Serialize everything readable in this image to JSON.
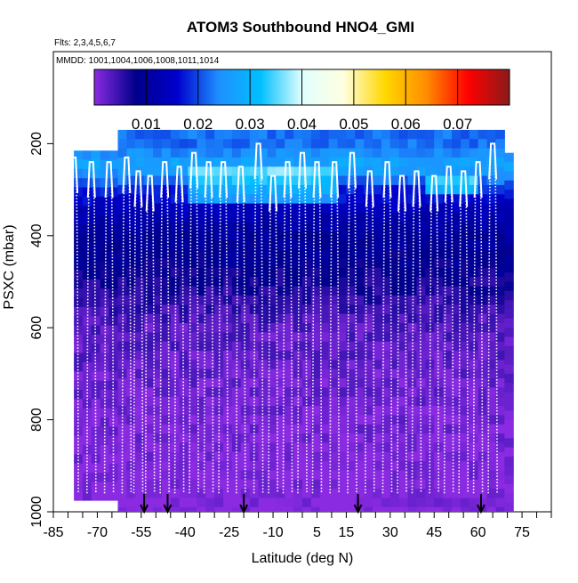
{
  "chart_data": {
    "type": "heatmap",
    "title": "ATOM3 Southbound HNO4_GMI",
    "flights_note": "Flts: 2,3,4,5,6,7",
    "dates_note": "MMDD: 1001,1004,1006,1008,1011,1014",
    "xlabel": "Latitude (deg N)",
    "ylabel": "PSXC (mbar)",
    "xlim": [
      -85,
      85
    ],
    "ylim": [
      1000,
      0
    ],
    "x_ticks": [
      -85,
      -70,
      -55,
      -40,
      -25,
      -10,
      5,
      15,
      30,
      45,
      60,
      75
    ],
    "x_tick_labels": [
      "-85",
      "-70",
      "-55",
      "-40",
      "-25",
      "-10",
      "5",
      "15",
      "30",
      "45",
      "60",
      "75"
    ],
    "y_ticks": [
      200,
      400,
      600,
      800,
      1000
    ],
    "y_tick_labels": [
      "200",
      "400",
      "600",
      "800",
      "1000"
    ],
    "colorbar": {
      "min": 0.0,
      "max": 0.08,
      "ticks": [
        0.01,
        0.02,
        0.03,
        0.04,
        0.05,
        0.06,
        0.07
      ],
      "tick_labels": [
        "0.01",
        "0.02",
        "0.03",
        "0.04",
        "0.05",
        "0.06",
        "0.07"
      ],
      "colors": [
        "#8a2be2",
        "#00008b",
        "#0000cd",
        "#1e90ff",
        "#00bfff",
        "#e0ffff",
        "#ffffe0",
        "#ffd700",
        "#ff8c00",
        "#ff0000",
        "#8b1a1a"
      ]
    },
    "arrow_latitudes": [
      -54,
      -46,
      -20,
      19,
      61
    ],
    "field_extent": {
      "lat_min": -78,
      "lat_max": 72,
      "p_top": 170,
      "p_bottom": 1000
    },
    "concentration_profile": [
      {
        "p": 200,
        "v": 0.022
      },
      {
        "p": 250,
        "v": 0.028
      },
      {
        "p": 300,
        "v": 0.018
      },
      {
        "p": 350,
        "v": 0.013
      },
      {
        "p": 400,
        "v": 0.01
      },
      {
        "p": 450,
        "v": 0.009
      },
      {
        "p": 500,
        "v": 0.007
      },
      {
        "p": 550,
        "v": 0.005
      },
      {
        "p": 600,
        "v": 0.003
      },
      {
        "p": 700,
        "v": 0.002
      },
      {
        "p": 800,
        "v": 0.001
      },
      {
        "p": 1000,
        "v": 0.0
      }
    ],
    "profiles": [
      {
        "lat": -78,
        "p_top": 230
      },
      {
        "lat": -72,
        "p_top": 240
      },
      {
        "lat": -66,
        "p_top": 240
      },
      {
        "lat": -60,
        "p_top": 230
      },
      {
        "lat": -56,
        "p_top": 260
      },
      {
        "lat": -52,
        "p_top": 270
      },
      {
        "lat": -47,
        "p_top": 240
      },
      {
        "lat": -42,
        "p_top": 250
      },
      {
        "lat": -37,
        "p_top": 220
      },
      {
        "lat": -32,
        "p_top": 240
      },
      {
        "lat": -27,
        "p_top": 240
      },
      {
        "lat": -21,
        "p_top": 250
      },
      {
        "lat": -15,
        "p_top": 200
      },
      {
        "lat": -10,
        "p_top": 270
      },
      {
        "lat": -5,
        "p_top": 240
      },
      {
        "lat": 0,
        "p_top": 220
      },
      {
        "lat": 5,
        "p_top": 240
      },
      {
        "lat": 11,
        "p_top": 240
      },
      {
        "lat": 17,
        "p_top": 220
      },
      {
        "lat": 23,
        "p_top": 260
      },
      {
        "lat": 29,
        "p_top": 240
      },
      {
        "lat": 34,
        "p_top": 270
      },
      {
        "lat": 39,
        "p_top": 260
      },
      {
        "lat": 45,
        "p_top": 270
      },
      {
        "lat": 50,
        "p_top": 250
      },
      {
        "lat": 55,
        "p_top": 260
      },
      {
        "lat": 60,
        "p_top": 240
      },
      {
        "lat": 65,
        "p_top": 200
      }
    ]
  }
}
